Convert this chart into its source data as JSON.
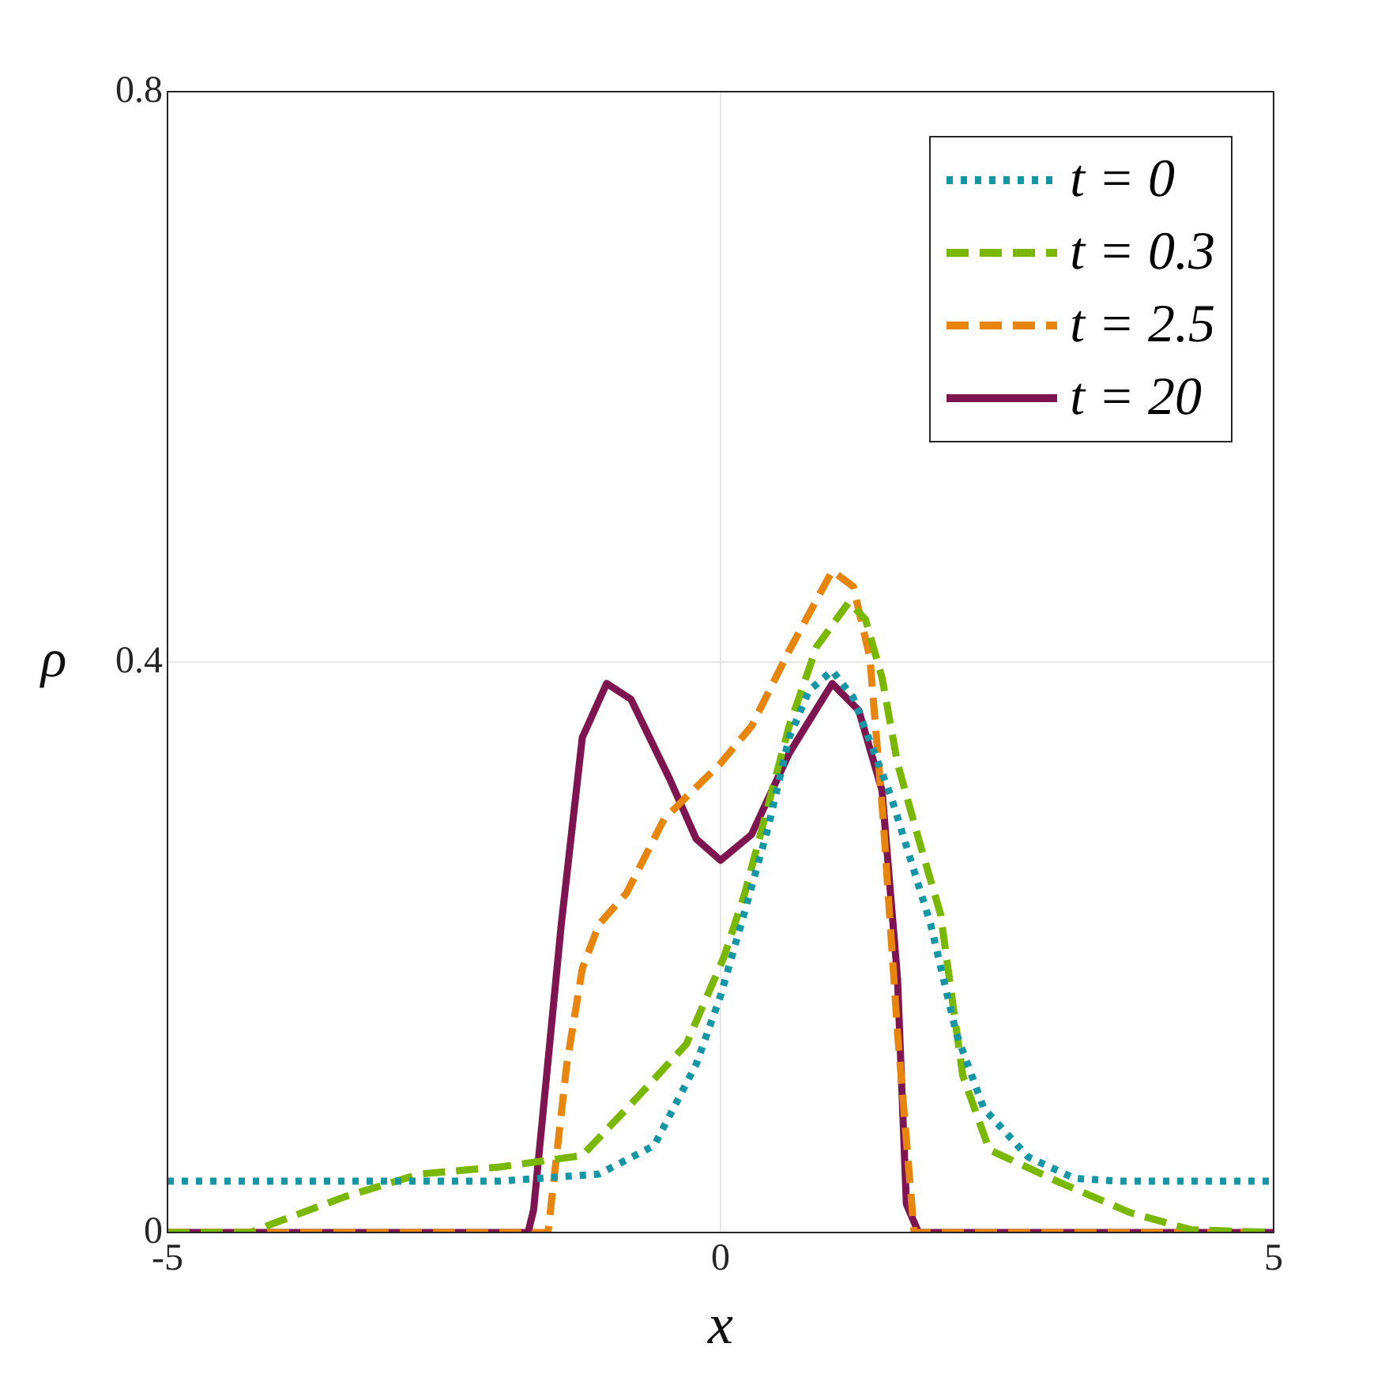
{
  "chart_data": {
    "type": "line",
    "xlabel": "x",
    "ylabel": "ρ",
    "xlim": [
      -5,
      5
    ],
    "ylim": [
      0,
      0.8
    ],
    "xticks": [
      -5,
      0,
      5
    ],
    "yticks": [
      0,
      0.4,
      0.8
    ],
    "grid": true,
    "legend": "top right",
    "marker": "none",
    "series": [
      {
        "name": "t = 0",
        "color": "#1496a5",
        "line_style": "dotted",
        "x": [
          -5,
          -2,
          -1.1,
          -0.6,
          -0.22,
          0,
          0.2,
          0.43,
          0.62,
          0.8,
          1.01,
          1.2,
          1.54,
          1.9,
          2.13,
          2.38,
          2.78,
          3.2,
          3.6,
          5
        ],
        "values": [
          0.036,
          0.036,
          0.041,
          0.061,
          0.118,
          0.166,
          0.22,
          0.284,
          0.347,
          0.38,
          0.394,
          0.375,
          0.306,
          0.216,
          0.14,
          0.087,
          0.053,
          0.038,
          0.036,
          0.036
        ]
      },
      {
        "name": "t = 0.3",
        "color": "#7ab800",
        "line_style": "dashed",
        "x": [
          -5,
          -4.25,
          -4.09,
          -3.4,
          -2.72,
          -1.99,
          -1.25,
          -0.75,
          -0.31,
          0.03,
          0.22,
          0.62,
          0.87,
          1.16,
          1.31,
          1.46,
          1.6,
          1.79,
          1.99,
          2.09,
          2.19,
          2.43,
          3.07,
          3.7,
          4.25,
          5
        ],
        "values": [
          0,
          0,
          0.005,
          0.025,
          0.041,
          0.046,
          0.054,
          0.095,
          0.132,
          0.193,
          0.238,
          0.355,
          0.411,
          0.442,
          0.43,
          0.389,
          0.329,
          0.276,
          0.223,
          0.166,
          0.11,
          0.058,
          0.035,
          0.014,
          0.002,
          0
        ]
      },
      {
        "name": "t = 2.5",
        "color": "#e8850c",
        "line_style": "dashed",
        "x": [
          -5,
          -1.56,
          -1.39,
          -1.25,
          -1.1,
          -0.85,
          -0.51,
          0,
          0.28,
          0.62,
          1.01,
          1.2,
          1.35,
          1.47,
          1.6,
          1.75,
          5
        ],
        "values": [
          0,
          0,
          0.118,
          0.185,
          0.216,
          0.238,
          0.29,
          0.329,
          0.355,
          0.408,
          0.464,
          0.453,
          0.403,
          0.29,
          0.14,
          0,
          0
        ]
      },
      {
        "name": "t = 20",
        "color": "#7e1450",
        "line_style": "solid",
        "x": [
          -5,
          -1.74,
          -1.69,
          -1.44,
          -1.25,
          -1.03,
          -0.81,
          -0.46,
          -0.22,
          0,
          0.28,
          0.62,
          1.01,
          1.25,
          1.46,
          1.6,
          1.68,
          1.79,
          5
        ],
        "values": [
          0,
          0,
          0.016,
          0.216,
          0.347,
          0.385,
          0.374,
          0.318,
          0.276,
          0.261,
          0.279,
          0.336,
          0.385,
          0.366,
          0.31,
          0.178,
          0.02,
          0,
          0
        ]
      }
    ]
  }
}
